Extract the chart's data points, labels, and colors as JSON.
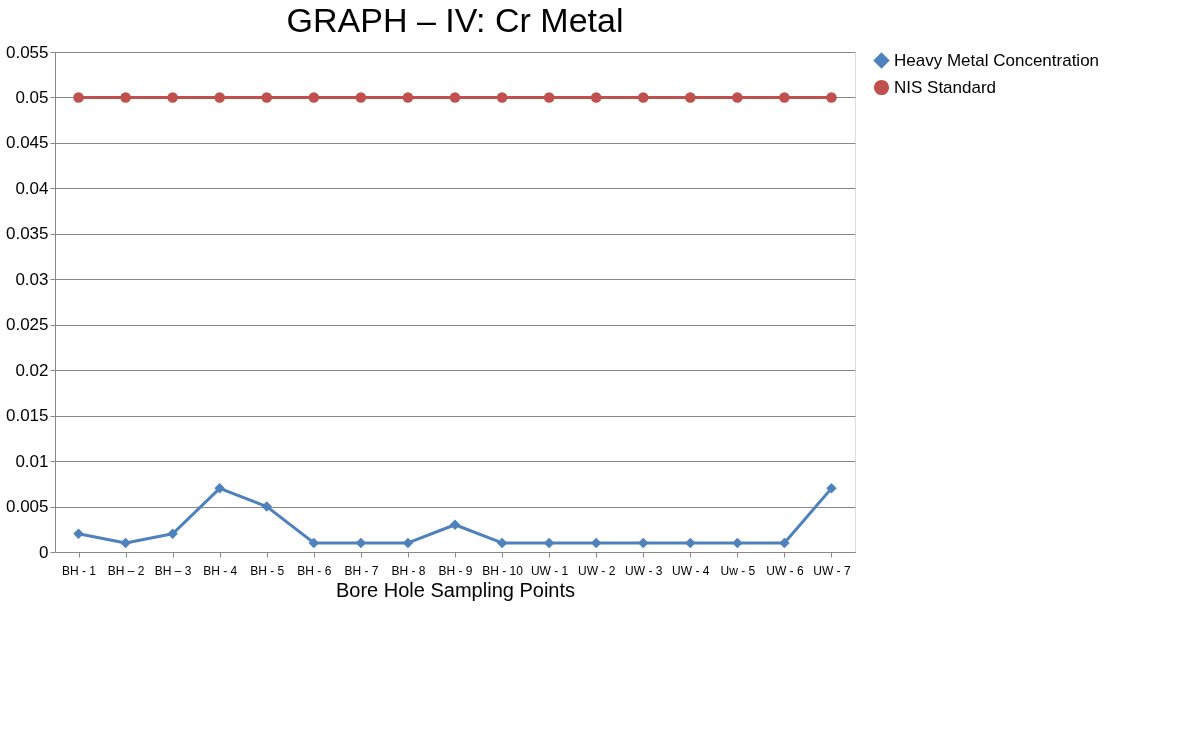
{
  "chart_data": {
    "type": "line",
    "title": "GRAPH – IV: Cr Metal",
    "xlabel": "Bore Hole Sampling Points",
    "categories": [
      "BH - 1",
      "BH – 2",
      "BH – 3",
      "BH - 4",
      "BH - 5",
      "BH - 6",
      "BH - 7",
      "BH - 8",
      "BH - 9",
      "BH - 10",
      "UW - 1",
      "UW - 2",
      "UW - 3",
      "UW - 4",
      "Uw - 5",
      "UW - 6",
      "UW - 7"
    ],
    "series": [
      {
        "name": "Heavy Metal Concentration",
        "color": "#4f81bd",
        "marker": "diamond",
        "values": [
          0.002,
          0.001,
          0.002,
          0.007,
          0.005,
          0.001,
          0.001,
          0.001,
          0.003,
          0.001,
          0.001,
          0.001,
          0.001,
          0.001,
          0.001,
          0.001,
          0.007
        ]
      },
      {
        "name": "NIS Standard",
        "color": "#c0504d",
        "marker": "circle",
        "values": [
          0.05,
          0.05,
          0.05,
          0.05,
          0.05,
          0.05,
          0.05,
          0.05,
          0.05,
          0.05,
          0.05,
          0.05,
          0.05,
          0.05,
          0.05,
          0.05,
          0.05
        ]
      }
    ],
    "ylim": [
      0,
      0.055
    ],
    "yticks": [
      0,
      0.005,
      0.01,
      0.015,
      0.02,
      0.025,
      0.03,
      0.035,
      0.04,
      0.045,
      0.05,
      0.055
    ],
    "grid": "y",
    "legend": "right"
  }
}
